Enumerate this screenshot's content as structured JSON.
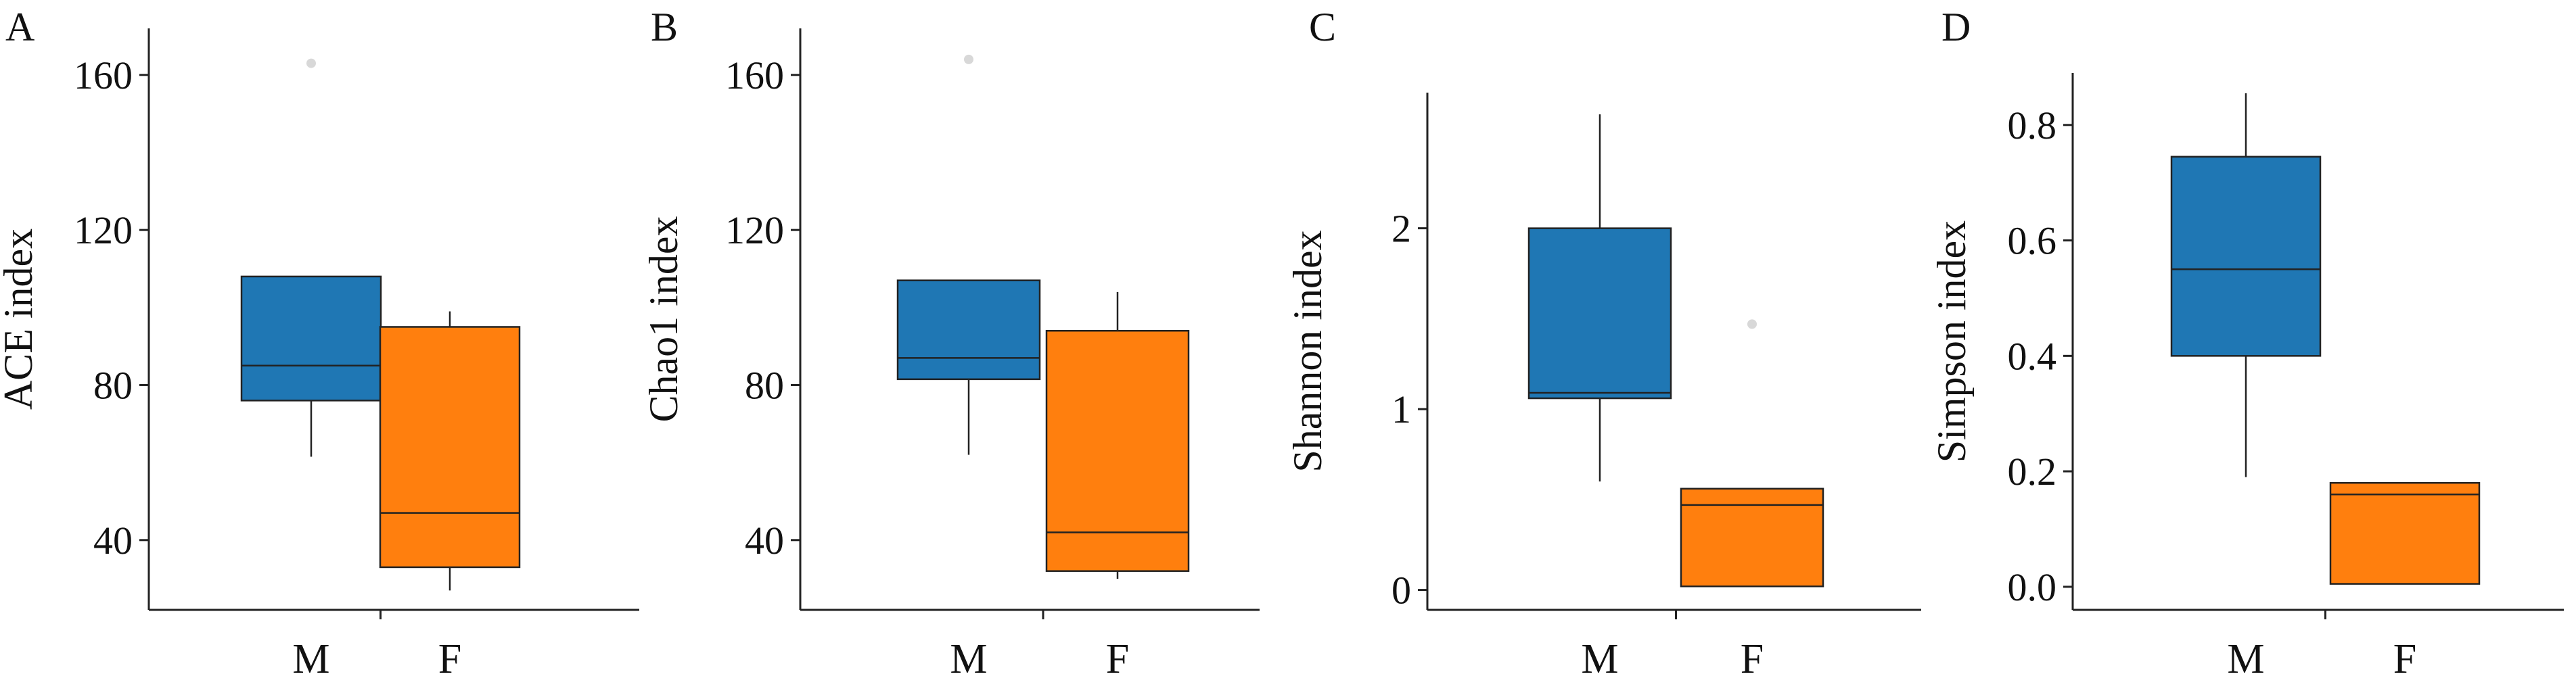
{
  "chart_data": [
    {
      "type": "box",
      "panel_label": "A",
      "ylabel": "ACE index",
      "ylim": [
        22,
        172
      ],
      "yticks": [
        40,
        80,
        120,
        160
      ],
      "ytick_labels": [
        "40",
        "80",
        "120",
        "160"
      ],
      "categories": [
        "M",
        "F"
      ],
      "boxes": [
        {
          "name": "M",
          "color": "#1f77b4",
          "whisker_low": 61.5,
          "q1": 76,
          "median": 85,
          "q3": 108,
          "whisker_high": 108,
          "outliers": [
            163
          ]
        },
        {
          "name": "F",
          "color": "#ff7f0e",
          "whisker_low": 27,
          "q1": 33,
          "median": 47,
          "q3": 95,
          "whisker_high": 99,
          "outliers": []
        }
      ]
    },
    {
      "type": "box",
      "panel_label": "B",
      "ylabel": "Chao1 index",
      "ylim": [
        22,
        172
      ],
      "yticks": [
        40,
        80,
        120,
        160
      ],
      "ytick_labels": [
        "40",
        "80",
        "120",
        "160"
      ],
      "categories": [
        "M",
        "F"
      ],
      "boxes": [
        {
          "name": "M",
          "color": "#1f77b4",
          "whisker_low": 62,
          "q1": 81.5,
          "median": 87,
          "q3": 107,
          "whisker_high": 107,
          "outliers": [
            164
          ]
        },
        {
          "name": "F",
          "color": "#ff7f0e",
          "whisker_low": 30,
          "q1": 32,
          "median": 42,
          "q3": 94,
          "whisker_high": 104,
          "outliers": []
        }
      ]
    },
    {
      "type": "box",
      "panel_label": "C",
      "ylabel": "Shannon index",
      "ylim": [
        -0.11,
        2.75
      ],
      "yticks": [
        0,
        1,
        2
      ],
      "ytick_labels": [
        "0",
        "1",
        "2"
      ],
      "categories": [
        "M",
        "F"
      ],
      "boxes": [
        {
          "name": "M",
          "color": "#1f77b4",
          "whisker_low": 0.6,
          "q1": 1.06,
          "median": 1.09,
          "q3": 2.0,
          "whisker_high": 2.63,
          "outliers": []
        },
        {
          "name": "F",
          "color": "#ff7f0e",
          "whisker_low": 0.02,
          "q1": 0.02,
          "median": 0.47,
          "q3": 0.56,
          "whisker_high": 0.56,
          "outliers": [
            1.47
          ]
        }
      ]
    },
    {
      "type": "box",
      "panel_label": "D",
      "ylabel": "Simpson index",
      "ylim": [
        -0.04,
        0.89
      ],
      "yticks": [
        0.0,
        0.2,
        0.4,
        0.6,
        0.8
      ],
      "ytick_labels": [
        "0.0",
        "0.2",
        "0.4",
        "0.6",
        "0.8"
      ],
      "categories": [
        "M",
        "F"
      ],
      "boxes": [
        {
          "name": "M",
          "color": "#1f77b4",
          "whisker_low": 0.19,
          "q1": 0.4,
          "median": 0.55,
          "q3": 0.745,
          "whisker_high": 0.855,
          "outliers": []
        },
        {
          "name": "F",
          "color": "#ff7f0e",
          "whisker_low": 0.005,
          "q1": 0.005,
          "median": 0.16,
          "q3": 0.18,
          "whisker_high": 0.18,
          "outliers": []
        }
      ]
    }
  ]
}
